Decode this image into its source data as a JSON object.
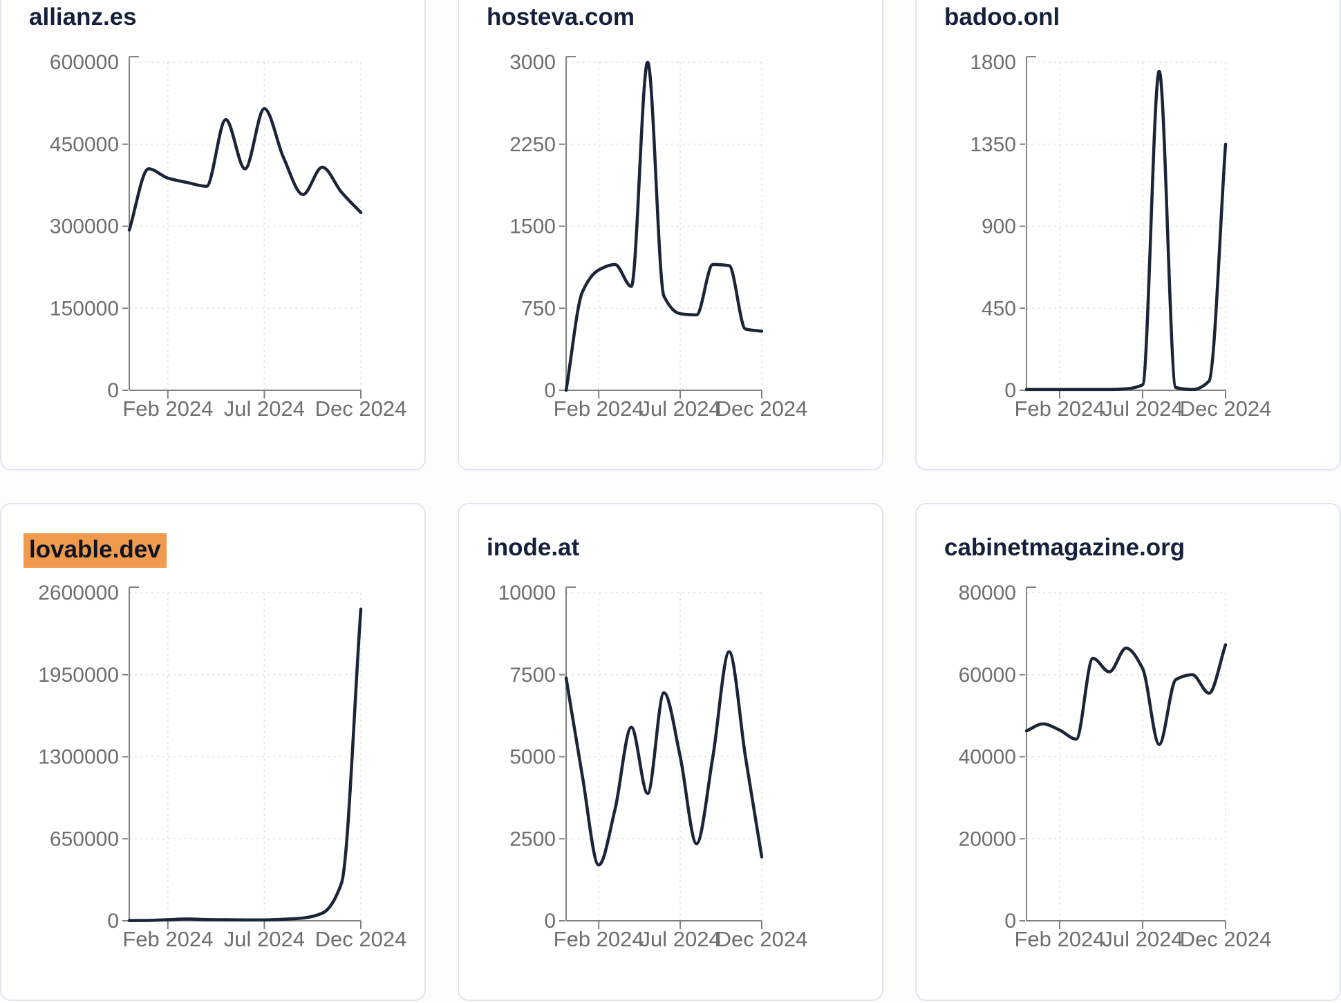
{
  "page": {
    "description": "Grid of six domain traffic sparkline cards, monthly visits Dec 2023 - Dec 2024",
    "colors": {
      "line": "#1c2438",
      "title": "#15203a",
      "axis": "#818181",
      "tick_label": "#6e6e6e",
      "grid": "#e2e2e2",
      "card_border": "#dfe5ee",
      "card_bg": "#ffffff",
      "highlight_bg": "#f09a4e"
    }
  },
  "cards": [
    {
      "title": "allianz.es",
      "highlighted": false,
      "chart_data": {
        "type": "line",
        "title": "allianz.es",
        "x": [
          "Dec 2023",
          "Jan 2024",
          "Feb 2024",
          "Mar 2024",
          "Apr 2024",
          "May 2024",
          "Jun 2024",
          "Jul 2024",
          "Aug 2024",
          "Sep 2024",
          "Oct 2024",
          "Nov 2024",
          "Dec 2024"
        ],
        "values": [
          293000,
          405000,
          388000,
          380000,
          373000,
          495000,
          405000,
          515000,
          425000,
          358000,
          408000,
          362000,
          325000
        ],
        "ylim": [
          0,
          600000
        ],
        "y_ticks": [
          0,
          150000,
          300000,
          450000,
          600000
        ],
        "x_tick_indices": [
          2,
          7,
          12
        ],
        "x_tick_labels": [
          "Feb 2024",
          "Jul 2024",
          "Dec 2024"
        ],
        "grid": "dashed"
      }
    },
    {
      "title": "hosteva.com",
      "highlighted": false,
      "chart_data": {
        "type": "line",
        "title": "hosteva.com",
        "x": [
          "Dec 2023",
          "Jan 2024",
          "Feb 2024",
          "Mar 2024",
          "Apr 2024",
          "May 2024",
          "Jun 2024",
          "Jul 2024",
          "Aug 2024",
          "Sep 2024",
          "Oct 2024",
          "Nov 2024",
          "Dec 2024"
        ],
        "values": [
          0,
          900,
          1100,
          1150,
          950,
          3000,
          860,
          700,
          690,
          1150,
          1140,
          560,
          540
        ],
        "ylim": [
          0,
          3000
        ],
        "y_ticks": [
          0,
          750,
          1500,
          2250,
          3000
        ],
        "x_tick_indices": [
          2,
          7,
          12
        ],
        "x_tick_labels": [
          "Feb 2024",
          "Jul 2024",
          "Dec 2024"
        ],
        "grid": "dashed"
      }
    },
    {
      "title": "badoo.onl",
      "highlighted": false,
      "chart_data": {
        "type": "line",
        "title": "badoo.onl",
        "x": [
          "Dec 2023",
          "Jan 2024",
          "Feb 2024",
          "Mar 2024",
          "Apr 2024",
          "May 2024",
          "Jun 2024",
          "Jul 2024",
          "Aug 2024",
          "Sep 2024",
          "Oct 2024",
          "Nov 2024",
          "Dec 2024"
        ],
        "values": [
          4,
          4,
          4,
          4,
          4,
          4,
          8,
          30,
          1750,
          15,
          4,
          50,
          1350
        ],
        "ylim": [
          0,
          1800
        ],
        "y_ticks": [
          0,
          450,
          900,
          1350,
          1800
        ],
        "x_tick_indices": [
          2,
          7,
          12
        ],
        "x_tick_labels": [
          "Feb 2024",
          "Jul 2024",
          "Dec 2024"
        ],
        "grid": "dashed"
      }
    },
    {
      "title": "lovable.dev",
      "highlighted": true,
      "chart_data": {
        "type": "line",
        "title": "lovable.dev",
        "x": [
          "Dec 2023",
          "Jan 2024",
          "Feb 2024",
          "Mar 2024",
          "Apr 2024",
          "May 2024",
          "Jun 2024",
          "Jul 2024",
          "Aug 2024",
          "Sep 2024",
          "Oct 2024",
          "Nov 2024",
          "Dec 2024"
        ],
        "values": [
          2000,
          3000,
          9000,
          14000,
          10000,
          8000,
          7000,
          7000,
          12000,
          22000,
          60000,
          300000,
          2470000
        ],
        "ylim": [
          0,
          2600000
        ],
        "y_ticks": [
          0,
          650000,
          1300000,
          1950000,
          2600000
        ],
        "x_tick_indices": [
          2,
          7,
          12
        ],
        "x_tick_labels": [
          "Feb 2024",
          "Jul 2024",
          "Dec 2024"
        ],
        "grid": "dashed"
      }
    },
    {
      "title": "inode.at",
      "highlighted": false,
      "chart_data": {
        "type": "line",
        "title": "inode.at",
        "x": [
          "Dec 2023",
          "Jan 2024",
          "Feb 2024",
          "Mar 2024",
          "Apr 2024",
          "May 2024",
          "Jun 2024",
          "Jul 2024",
          "Aug 2024",
          "Sep 2024",
          "Oct 2024",
          "Nov 2024",
          "Dec 2024"
        ],
        "values": [
          7400,
          4400,
          1700,
          3400,
          5900,
          3880,
          6950,
          5000,
          2350,
          5000,
          8200,
          5000,
          1950
        ],
        "ylim": [
          0,
          10000
        ],
        "y_ticks": [
          0,
          2500,
          5000,
          7500,
          10000
        ],
        "x_tick_indices": [
          2,
          7,
          12
        ],
        "x_tick_labels": [
          "Feb 2024",
          "Jul 2024",
          "Dec 2024"
        ],
        "grid": "dashed"
      }
    },
    {
      "title": "cabinetmagazine.org",
      "highlighted": false,
      "chart_data": {
        "type": "line",
        "title": "cabinetmagazine.org",
        "x": [
          "Dec 2023",
          "Jan 2024",
          "Feb 2024",
          "Mar 2024",
          "Apr 2024",
          "May 2024",
          "Jun 2024",
          "Jul 2024",
          "Aug 2024",
          "Sep 2024",
          "Oct 2024",
          "Nov 2024",
          "Dec 2024"
        ],
        "values": [
          46300,
          48000,
          46500,
          44300,
          64000,
          60700,
          66500,
          61500,
          43000,
          58800,
          60000,
          55500,
          67300
        ],
        "ylim": [
          0,
          80000
        ],
        "y_ticks": [
          0,
          20000,
          40000,
          60000,
          80000
        ],
        "x_tick_indices": [
          2,
          7,
          12
        ],
        "x_tick_labels": [
          "Feb 2024",
          "Jul 2024",
          "Dec 2024"
        ],
        "grid": "dashed"
      }
    }
  ]
}
